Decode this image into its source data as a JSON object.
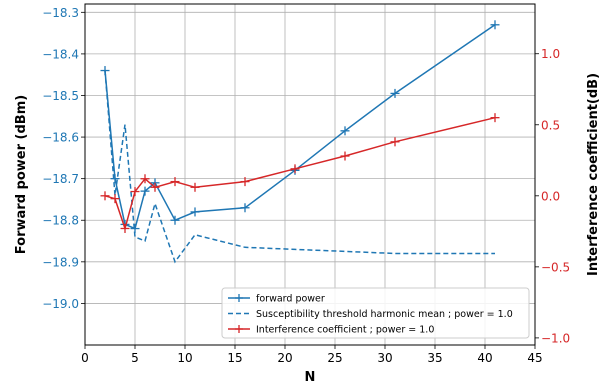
{
  "chart_data": {
    "type": "line",
    "xlabel": "N",
    "ylabel": "Forward power (dBm)",
    "ylabel_right": "Interference coefficient(dB)",
    "xlim": [
      0,
      45
    ],
    "ylim": [
      -19.1,
      -18.28
    ],
    "ylim_right": [
      -1.05,
      1.35
    ],
    "x_ticks": [
      0,
      5,
      10,
      15,
      20,
      25,
      30,
      35,
      40,
      45
    ],
    "y_ticks": [
      -19.0,
      -18.9,
      -18.8,
      -18.7,
      -18.6,
      -18.5,
      -18.4,
      -18.3
    ],
    "y_ticks_right": [
      -1.0,
      -0.5,
      0.0,
      0.5,
      1.0
    ],
    "grid": true,
    "legend_position": "bottom-right",
    "series": [
      {
        "name": "forward power",
        "axis": "left",
        "color": "#1f77b4",
        "style": "solid",
        "marker": "+",
        "x": [
          2,
          3,
          4,
          5,
          6,
          7,
          9,
          11,
          16,
          21,
          26,
          31,
          41
        ],
        "y": [
          -18.44,
          -18.7,
          -18.81,
          -18.82,
          -18.73,
          -18.71,
          -18.8,
          -18.78,
          -18.77,
          -18.68,
          -18.585,
          -18.495,
          -18.33
        ]
      },
      {
        "name": "Susceptibility threshold harmonic mean ; power = 1.0",
        "axis": "left",
        "color": "#1f77b4",
        "style": "dashed",
        "marker": "none",
        "x": [
          2,
          3,
          4,
          5,
          6,
          7,
          9,
          11,
          16,
          21,
          26,
          31,
          41
        ],
        "y": [
          -18.44,
          -18.74,
          -18.57,
          -18.84,
          -18.85,
          -18.76,
          -18.9,
          -18.835,
          -18.865,
          -18.87,
          -18.875,
          -18.88,
          -18.88
        ]
      },
      {
        "name": "Interference coefficient ; power = 1.0",
        "axis": "right",
        "color": "#d62728",
        "style": "solid",
        "marker": "+",
        "x": [
          2,
          3,
          4,
          5,
          6,
          7,
          9,
          11,
          16,
          21,
          26,
          31,
          41
        ],
        "y": [
          0.0,
          -0.02,
          -0.23,
          0.03,
          0.12,
          0.06,
          0.1,
          0.06,
          0.1,
          0.19,
          0.28,
          0.38,
          0.55
        ]
      }
    ]
  }
}
